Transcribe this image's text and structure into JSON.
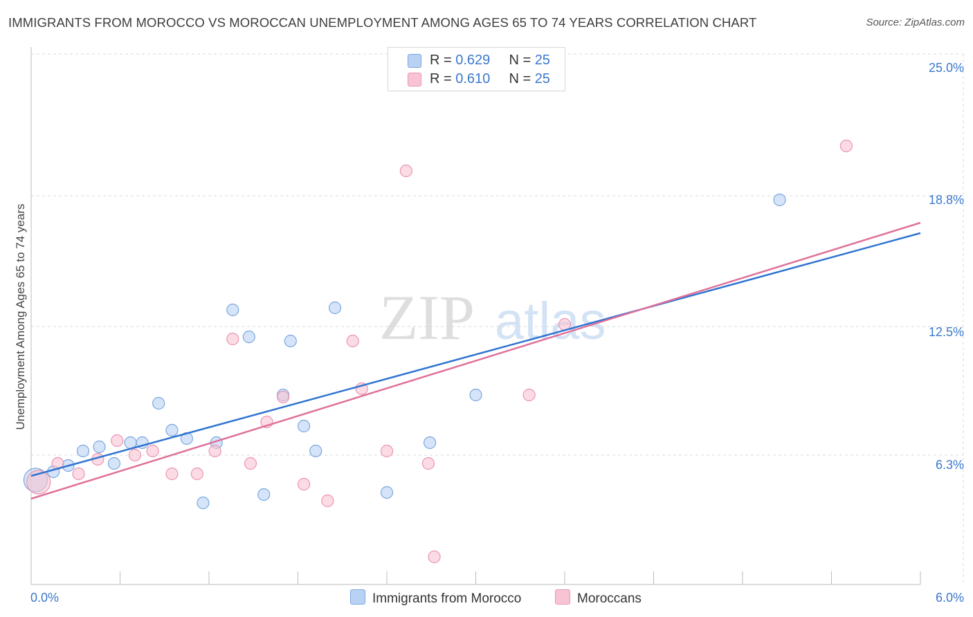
{
  "title": "IMMIGRANTS FROM MOROCCO VS MOROCCAN UNEMPLOYMENT AMONG AGES 65 TO 74 YEARS CORRELATION CHART",
  "source": "Source: ZipAtlas.com",
  "watermark": {
    "zip": "ZIP",
    "atlas": "atlas"
  },
  "legend": {
    "rows": [
      {
        "r_label": "R = ",
        "r_value": "0.629",
        "n_label": "N = ",
        "n_value": "25"
      },
      {
        "r_label": "R = ",
        "r_value": "0.610",
        "n_label": "N = ",
        "n_value": "25"
      }
    ]
  },
  "colors": {
    "blue_fill": "#b9d2f3",
    "blue_stroke": "#7aa6e0",
    "blue_line": "#2f74d0",
    "pink_fill": "#f8c4d3",
    "pink_stroke": "#ec93b0",
    "pink_line": "#e0709a",
    "tick_label": "#3a78cc",
    "grid": "#d9d9d9"
  },
  "chart_data": {
    "type": "scatter",
    "title": "IMMIGRANTS FROM MOROCCO VS MOROCCAN UNEMPLOYMENT AMONG AGES 65 TO 74 YEARS CORRELATION CHART",
    "xlabel": "",
    "ylabel": "Unemployment Among Ages 65 to 74 years",
    "xlim": [
      0,
      6.0
    ],
    "ylim": [
      0,
      25.0
    ],
    "x_tick_labels": [
      "0.0%",
      "6.0%"
    ],
    "y_ticks": [
      6.3,
      12.5,
      18.8,
      25.0
    ],
    "y_tick_labels": [
      "6.3%",
      "12.5%",
      "18.8%",
      "25.0%"
    ],
    "grid": true,
    "legend_position": "top-center",
    "series": [
      {
        "name": "Immigrants from Morocco",
        "r": 0.629,
        "n": 25,
        "trend": {
          "x0": 0.0,
          "y0": 5.3,
          "x1": 6.0,
          "y1": 17.0
        },
        "points": [
          {
            "x": 0.03,
            "y": 5.1,
            "big": true
          },
          {
            "x": 0.15,
            "y": 5.5
          },
          {
            "x": 0.25,
            "y": 5.8
          },
          {
            "x": 0.35,
            "y": 6.5
          },
          {
            "x": 0.46,
            "y": 6.7
          },
          {
            "x": 0.56,
            "y": 5.9
          },
          {
            "x": 0.67,
            "y": 6.9
          },
          {
            "x": 0.75,
            "y": 6.9
          },
          {
            "x": 0.86,
            "y": 8.8
          },
          {
            "x": 0.95,
            "y": 7.5
          },
          {
            "x": 1.05,
            "y": 7.1
          },
          {
            "x": 1.16,
            "y": 4.0
          },
          {
            "x": 1.25,
            "y": 6.9
          },
          {
            "x": 1.36,
            "y": 13.3
          },
          {
            "x": 1.47,
            "y": 12.0
          },
          {
            "x": 1.57,
            "y": 4.4
          },
          {
            "x": 1.7,
            "y": 9.2
          },
          {
            "x": 1.75,
            "y": 11.8
          },
          {
            "x": 1.84,
            "y": 7.7
          },
          {
            "x": 1.92,
            "y": 6.5
          },
          {
            "x": 2.05,
            "y": 13.4
          },
          {
            "x": 2.4,
            "y": 4.5
          },
          {
            "x": 2.69,
            "y": 6.9
          },
          {
            "x": 3.0,
            "y": 9.2
          },
          {
            "x": 5.05,
            "y": 18.6
          }
        ]
      },
      {
        "name": "Moroccans",
        "r": 0.61,
        "n": 25,
        "trend": {
          "x0": 0.0,
          "y0": 4.2,
          "x1": 6.0,
          "y1": 17.5
        },
        "points": [
          {
            "x": 0.05,
            "y": 5.0,
            "big": true
          },
          {
            "x": 0.18,
            "y": 5.9
          },
          {
            "x": 0.32,
            "y": 5.4
          },
          {
            "x": 0.45,
            "y": 6.1
          },
          {
            "x": 0.58,
            "y": 7.0
          },
          {
            "x": 0.7,
            "y": 6.3
          },
          {
            "x": 0.82,
            "y": 6.5
          },
          {
            "x": 0.95,
            "y": 5.4
          },
          {
            "x": 1.12,
            "y": 5.4
          },
          {
            "x": 1.24,
            "y": 6.5
          },
          {
            "x": 1.36,
            "y": 11.9
          },
          {
            "x": 1.48,
            "y": 5.9
          },
          {
            "x": 1.59,
            "y": 7.9
          },
          {
            "x": 1.7,
            "y": 9.1
          },
          {
            "x": 1.84,
            "y": 4.9
          },
          {
            "x": 2.0,
            "y": 4.1
          },
          {
            "x": 2.17,
            "y": 11.8
          },
          {
            "x": 2.23,
            "y": 9.5
          },
          {
            "x": 2.4,
            "y": 6.5
          },
          {
            "x": 2.53,
            "y": 20.0
          },
          {
            "x": 2.68,
            "y": 5.9
          },
          {
            "x": 2.72,
            "y": 1.4
          },
          {
            "x": 3.36,
            "y": 9.2
          },
          {
            "x": 3.6,
            "y": 12.6
          },
          {
            "x": 5.5,
            "y": 21.2
          }
        ]
      }
    ]
  }
}
